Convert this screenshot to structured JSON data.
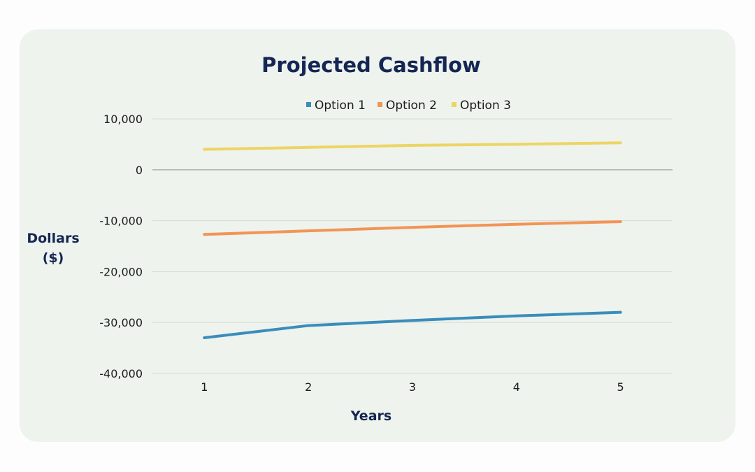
{
  "theme": {
    "card_background": "#eef3ee",
    "title_color": "#152654",
    "axis_title_color": "#152654",
    "gridline_color": "#d6dbd6",
    "zero_line_color": "#a9aeaa"
  },
  "chart_data": {
    "type": "line",
    "title": "Projected Cashflow",
    "xlabel": "Years",
    "ylabel": "Dollars ($)",
    "ylabel_lines": [
      "Dollars",
      "($)"
    ],
    "categories": [
      "1",
      "2",
      "3",
      "4",
      "5"
    ],
    "ylim": [
      -40000,
      10000
    ],
    "y_ticks": [
      10000,
      0,
      -10000,
      -20000,
      -30000,
      -40000
    ],
    "y_tick_labels": [
      "10,000",
      "0",
      "-10,000",
      "-20,000",
      "-30,000",
      "-40,000"
    ],
    "grid": true,
    "legend_position": "top",
    "series": [
      {
        "name": "Option 1",
        "color": "#3a8dbb",
        "values": [
          -33000,
          -30600,
          -29600,
          -28700,
          -28000
        ]
      },
      {
        "name": "Option 2",
        "color": "#f39455",
        "values": [
          -12700,
          -12000,
          -11300,
          -10700,
          -10200
        ]
      },
      {
        "name": "Option 3",
        "color": "#ecd563",
        "values": [
          4000,
          4400,
          4800,
          5000,
          5300
        ]
      }
    ]
  }
}
